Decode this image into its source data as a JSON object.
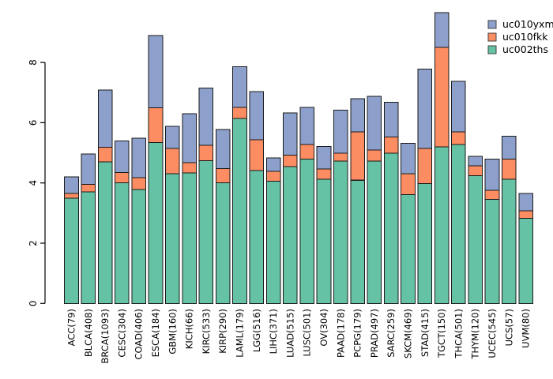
{
  "chart_data": {
    "type": "bar",
    "stacked": true,
    "title": "",
    "xlabel": "",
    "ylabel": "",
    "grid": false,
    "ylim": [
      0,
      9.7
    ],
    "yticks": [
      0,
      2,
      4,
      6,
      8
    ],
    "legend": {
      "position": "top-right",
      "order": [
        "uc010yxm",
        "uc010fkk",
        "uc002ths"
      ]
    },
    "categories": [
      "ACC(79)",
      "BLCA(408)",
      "BRCA(1093)",
      "CESC(304)",
      "COAD(406)",
      "ESCA(184)",
      "GBM(160)",
      "KICH(66)",
      "KIRC(533)",
      "KIRP(290)",
      "LAML(179)",
      "LGG(516)",
      "LIHC(371)",
      "LUAD(515)",
      "LUSC(501)",
      "OV(304)",
      "PAAD(178)",
      "PCPG(179)",
      "PRAD(497)",
      "SARC(259)",
      "SKCM(469)",
      "STAD(415)",
      "TGCT(150)",
      "THCA(501)",
      "THYM(120)",
      "UCEC(545)",
      "UCS(57)",
      "UVM(80)"
    ],
    "series": [
      {
        "name": "uc002ths",
        "color": "#66C2A5",
        "values": [
          3.5,
          3.7,
          4.7,
          4.0,
          3.78,
          5.34,
          4.31,
          4.33,
          4.74,
          4.0,
          6.14,
          4.41,
          4.06,
          4.54,
          4.79,
          4.12,
          4.73,
          4.09,
          4.72,
          4.99,
          3.61,
          3.98,
          5.2,
          5.27,
          4.24,
          3.45,
          4.12,
          2.82
        ]
      },
      {
        "name": "uc010fkk",
        "color": "#FC8D62",
        "values": [
          0.15,
          0.26,
          0.48,
          0.35,
          0.4,
          1.15,
          0.83,
          0.35,
          0.51,
          0.48,
          0.37,
          1.02,
          0.33,
          0.38,
          0.48,
          0.34,
          0.26,
          1.6,
          0.37,
          0.54,
          0.7,
          1.17,
          3.3,
          0.43,
          0.33,
          0.31,
          0.67,
          0.26
        ]
      },
      {
        "name": "uc010yxm",
        "color": "#8DA0CB",
        "values": [
          0.55,
          1.0,
          1.9,
          1.05,
          1.31,
          2.4,
          0.74,
          1.62,
          1.9,
          1.3,
          1.35,
          1.6,
          0.44,
          1.41,
          1.24,
          0.75,
          1.43,
          1.11,
          1.79,
          1.15,
          1.0,
          2.63,
          1.16,
          1.67,
          0.31,
          1.03,
          0.76,
          0.57
        ]
      }
    ]
  }
}
